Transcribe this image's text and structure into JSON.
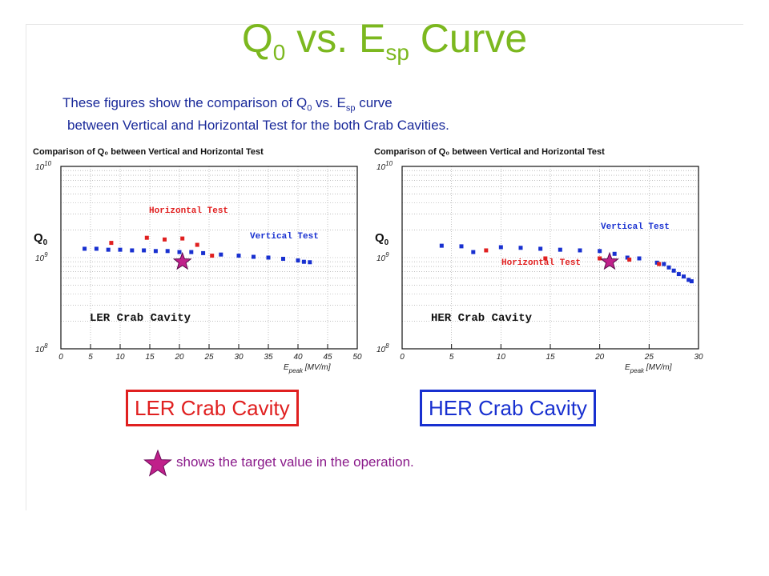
{
  "header": {
    "title_main": "Q",
    "title_sub1": "0",
    "title_mid": " vs. E",
    "title_sub2": "sp",
    "title_end": " Curve"
  },
  "description": {
    "line1_a": "These figures show the comparison of Q",
    "line1_sub1": "0",
    "line1_b": " vs. E",
    "line1_sub2": "sp",
    "line1_c": " curve",
    "line2": "between Vertical and Horizontal Test for the both Crab Cavities."
  },
  "labels": {
    "ler": "LER Crab Cavity",
    "her": "HER Crab Cavity"
  },
  "note": {
    "text": "shows the target value in the operation."
  },
  "colors": {
    "title": "#7cb81f",
    "description": "#1a2a9a",
    "horizontal": "#e02020",
    "vertical": "#1830d0",
    "star": "#c0208a"
  },
  "chart_data": [
    {
      "type": "scatter",
      "title": "Comparison of Q0 between Vertical and Horizontal Test",
      "ylabel": "Q0",
      "xlabel": "Epeak [MV/m]",
      "yscale": "log",
      "xlim": [
        0,
        50
      ],
      "ylim": [
        100000000.0,
        10000000000.0
      ],
      "xticks": [
        0,
        5,
        10,
        15,
        20,
        25,
        30,
        35,
        40,
        45,
        50
      ],
      "ytick_labels": [
        "10^10",
        "10^9",
        "10^8"
      ],
      "annotation": "LER Crab Cavity",
      "series": [
        {
          "name": "Horizontal Test",
          "color": "#e02020",
          "x": [
            8.5,
            14.5,
            17.5,
            20.5,
            23.0,
            25.5
          ],
          "y": [
            1450000000.0,
            1650000000.0,
            1580000000.0,
            1620000000.0,
            1380000000.0,
            1050000000.0
          ]
        },
        {
          "name": "Vertical Test",
          "color": "#1830d0",
          "x": [
            4,
            6,
            8,
            10,
            12,
            14,
            16,
            18,
            20,
            22,
            24,
            27,
            30,
            32.5,
            35,
            37.5,
            40,
            41,
            42
          ],
          "y": [
            1250000000.0,
            1250000000.0,
            1220000000.0,
            1220000000.0,
            1200000000.0,
            1200000000.0,
            1180000000.0,
            1180000000.0,
            1150000000.0,
            1150000000.0,
            1120000000.0,
            1080000000.0,
            1050000000.0,
            1020000000.0,
            1000000000.0,
            970000000.0,
            930000000.0,
            900000000.0,
            890000000.0
          ]
        }
      ],
      "target": {
        "x": 20.5,
        "y": 900000000.0
      }
    },
    {
      "type": "scatter",
      "title": "Comparison of Q0 between Vertical and Horizontal Test",
      "ylabel": "Q0",
      "xlabel": "Epeak [MV/m]",
      "yscale": "log",
      "xlim": [
        0,
        30
      ],
      "ylim": [
        100000000.0,
        10000000000.0
      ],
      "xticks": [
        0,
        5,
        10,
        15,
        20,
        25,
        30
      ],
      "ytick_labels": [
        "10^10",
        "10^9",
        "10^8"
      ],
      "annotation": "HER Crab Cavity",
      "series": [
        {
          "name": "Vertical Test",
          "color": "#1830d0",
          "x": [
            4,
            6,
            7.2,
            10,
            12,
            14,
            16,
            18,
            20,
            21.5,
            22.8,
            24,
            25.8,
            26.5,
            27,
            27.5,
            28,
            28.5,
            29,
            29.3
          ],
          "y": [
            1350000000.0,
            1330000000.0,
            1150000000.0,
            1300000000.0,
            1280000000.0,
            1250000000.0,
            1220000000.0,
            1200000000.0,
            1180000000.0,
            1100000000.0,
            1000000000.0,
            980000000.0,
            880000000.0,
            850000000.0,
            780000000.0,
            720000000.0,
            660000000.0,
            620000000.0,
            570000000.0,
            550000000.0
          ]
        },
        {
          "name": "Horizontal Test",
          "color": "#e02020",
          "x": [
            8.5,
            14.5,
            20.0,
            23.0,
            26.0
          ],
          "y": [
            1200000000.0,
            980000000.0,
            980000000.0,
            950000000.0,
            850000000.0
          ]
        }
      ],
      "target": {
        "x": 21,
        "y": 900000000.0
      }
    }
  ]
}
